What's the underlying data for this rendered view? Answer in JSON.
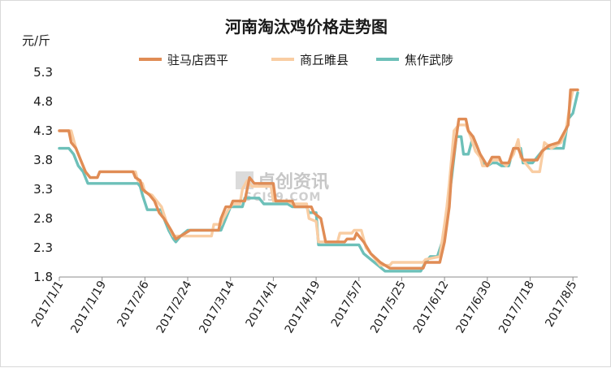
{
  "chart_data": {
    "type": "line",
    "title": "河南淘汰鸡价格走势图",
    "ylabel": "元/斤",
    "xlabel": "",
    "ylim": [
      1.8,
      5.3
    ],
    "yticks": [
      "5.3",
      "4.8",
      "4.3",
      "3.8",
      "3.3",
      "2.8",
      "2.3",
      "1.8"
    ],
    "x_range": [
      "2017/1/1",
      "2017/8/7"
    ],
    "xticks": [
      "2017/1/1",
      "2017/1/19",
      "2017/2/6",
      "2017/2/24",
      "2017/3/14",
      "2017/4/1",
      "2017/4/19",
      "2017/5/7",
      "2017/5/25",
      "2017/6/12",
      "2017/6/30",
      "2017/7/18",
      "2017/8/5"
    ],
    "legend_position": "top",
    "grid": false,
    "watermark": {
      "cn": "卓创资讯",
      "en": "SCI99.COM"
    },
    "series": [
      {
        "name": "驻马店西平",
        "color": "#E08C55",
        "points": [
          [
            "2017/1/1",
            4.3
          ],
          [
            "2017/1/5",
            4.3
          ],
          [
            "2017/1/6",
            4.1
          ],
          [
            "2017/1/8",
            4.0
          ],
          [
            "2017/1/10",
            3.8
          ],
          [
            "2017/1/12",
            3.6
          ],
          [
            "2017/1/14",
            3.5
          ],
          [
            "2017/1/17",
            3.5
          ],
          [
            "2017/1/18",
            3.6
          ],
          [
            "2017/2/1",
            3.6
          ],
          [
            "2017/2/2",
            3.5
          ],
          [
            "2017/2/4",
            3.45
          ],
          [
            "2017/2/5",
            3.3
          ],
          [
            "2017/2/8",
            3.2
          ],
          [
            "2017/2/10",
            3.1
          ],
          [
            "2017/2/12",
            2.9
          ],
          [
            "2017/2/14",
            2.8
          ],
          [
            "2017/2/17",
            2.6
          ],
          [
            "2017/2/19",
            2.45
          ],
          [
            "2017/2/21",
            2.5
          ],
          [
            "2017/2/25",
            2.6
          ],
          [
            "2017/3/9",
            2.6
          ],
          [
            "2017/3/10",
            2.8
          ],
          [
            "2017/3/12",
            3.0
          ],
          [
            "2017/3/14",
            3.0
          ],
          [
            "2017/3/15",
            3.1
          ],
          [
            "2017/3/20",
            3.1
          ],
          [
            "2017/3/22",
            3.5
          ],
          [
            "2017/3/24",
            3.4
          ],
          [
            "2017/4/1",
            3.4
          ],
          [
            "2017/4/2",
            3.1
          ],
          [
            "2017/4/9",
            3.1
          ],
          [
            "2017/4/10",
            3.0
          ],
          [
            "2017/4/17",
            3.0
          ],
          [
            "2017/4/18",
            2.9
          ],
          [
            "2017/4/21",
            2.8
          ],
          [
            "2017/4/23",
            2.4
          ],
          [
            "2017/5/1",
            2.4
          ],
          [
            "2017/5/2",
            2.45
          ],
          [
            "2017/5/5",
            2.45
          ],
          [
            "2017/5/6",
            2.55
          ],
          [
            "2017/5/9",
            2.4
          ],
          [
            "2017/5/12",
            2.2
          ],
          [
            "2017/5/16",
            2.05
          ],
          [
            "2017/5/20",
            1.95
          ],
          [
            "2017/5/24",
            1.95
          ],
          [
            "2017/5/25",
            1.95
          ],
          [
            "2017/6/3",
            1.95
          ],
          [
            "2017/6/4",
            2.05
          ],
          [
            "2017/6/10",
            2.05
          ],
          [
            "2017/6/12",
            2.4
          ],
          [
            "2017/6/14",
            3.0
          ],
          [
            "2017/6/15",
            3.6
          ],
          [
            "2017/6/17",
            4.2
          ],
          [
            "2017/6/18",
            4.5
          ],
          [
            "2017/6/21",
            4.5
          ],
          [
            "2017/6/22",
            4.3
          ],
          [
            "2017/6/24",
            4.2
          ],
          [
            "2017/6/25",
            4.1
          ],
          [
            "2017/6/27",
            3.9
          ],
          [
            "2017/6/30",
            3.7
          ],
          [
            "2017/7/2",
            3.85
          ],
          [
            "2017/7/5",
            3.85
          ],
          [
            "2017/7/6",
            3.75
          ],
          [
            "2017/7/9",
            3.75
          ],
          [
            "2017/7/11",
            4.0
          ],
          [
            "2017/7/13",
            4.0
          ],
          [
            "2017/7/15",
            3.8
          ],
          [
            "2017/7/21",
            3.8
          ],
          [
            "2017/7/23",
            3.95
          ],
          [
            "2017/7/26",
            4.05
          ],
          [
            "2017/7/30",
            4.1
          ],
          [
            "2017/8/3",
            4.4
          ],
          [
            "2017/8/4",
            5.0
          ],
          [
            "2017/8/7",
            5.0
          ]
        ]
      },
      {
        "name": "商丘睢县",
        "color": "#F9CDA3",
        "points": [
          [
            "2017/1/1",
            4.3
          ],
          [
            "2017/1/6",
            4.3
          ],
          [
            "2017/1/8",
            4.0
          ],
          [
            "2017/1/10",
            3.8
          ],
          [
            "2017/1/12",
            3.6
          ],
          [
            "2017/1/14",
            3.5
          ],
          [
            "2017/1/17",
            3.5
          ],
          [
            "2017/1/18",
            3.6
          ],
          [
            "2017/2/2",
            3.6
          ],
          [
            "2017/2/3",
            3.45
          ],
          [
            "2017/2/5",
            3.4
          ],
          [
            "2017/2/6",
            3.25
          ],
          [
            "2017/2/9",
            3.2
          ],
          [
            "2017/2/11",
            3.1
          ],
          [
            "2017/2/13",
            3.0
          ],
          [
            "2017/2/15",
            2.75
          ],
          [
            "2017/2/18",
            2.5
          ],
          [
            "2017/2/22",
            2.5
          ],
          [
            "2017/3/6",
            2.5
          ],
          [
            "2017/3/7",
            2.7
          ],
          [
            "2017/3/10",
            2.7
          ],
          [
            "2017/3/11",
            2.8
          ],
          [
            "2017/3/13",
            2.95
          ],
          [
            "2017/3/15",
            3.05
          ],
          [
            "2017/3/18",
            3.05
          ],
          [
            "2017/3/19",
            3.3
          ],
          [
            "2017/3/21",
            3.45
          ],
          [
            "2017/3/23",
            3.35
          ],
          [
            "2017/3/31",
            3.35
          ],
          [
            "2017/4/1",
            3.1
          ],
          [
            "2017/4/7",
            3.1
          ],
          [
            "2017/4/9",
            3.05
          ],
          [
            "2017/4/15",
            3.05
          ],
          [
            "2017/4/16",
            2.8
          ],
          [
            "2017/4/19",
            2.75
          ],
          [
            "2017/4/20",
            2.4
          ],
          [
            "2017/4/28",
            2.4
          ],
          [
            "2017/4/29",
            2.55
          ],
          [
            "2017/5/4",
            2.55
          ],
          [
            "2017/5/5",
            2.6
          ],
          [
            "2017/5/8",
            2.6
          ],
          [
            "2017/5/10",
            2.3
          ],
          [
            "2017/5/13",
            2.15
          ],
          [
            "2017/5/16",
            2.0
          ],
          [
            "2017/5/20",
            2.0
          ],
          [
            "2017/5/21",
            2.05
          ],
          [
            "2017/6/3",
            2.05
          ],
          [
            "2017/6/4",
            2.1
          ],
          [
            "2017/6/10",
            2.15
          ],
          [
            "2017/6/12",
            2.7
          ],
          [
            "2017/6/13",
            3.0
          ],
          [
            "2017/6/14",
            3.4
          ],
          [
            "2017/6/16",
            4.3
          ],
          [
            "2017/6/18",
            4.4
          ],
          [
            "2017/6/21",
            4.4
          ],
          [
            "2017/6/23",
            4.2
          ],
          [
            "2017/6/25",
            3.95
          ],
          [
            "2017/6/27",
            3.85
          ],
          [
            "2017/6/28",
            3.7
          ],
          [
            "2017/6/30",
            3.7
          ],
          [
            "2017/7/2",
            3.8
          ],
          [
            "2017/7/5",
            3.8
          ],
          [
            "2017/7/8",
            3.7
          ],
          [
            "2017/7/11",
            3.9
          ],
          [
            "2017/7/13",
            4.15
          ],
          [
            "2017/7/14",
            3.85
          ],
          [
            "2017/7/17",
            3.7
          ],
          [
            "2017/7/19",
            3.6
          ],
          [
            "2017/7/22",
            3.6
          ],
          [
            "2017/7/24",
            4.1
          ],
          [
            "2017/7/27",
            4.0
          ],
          [
            "2017/7/31",
            4.1
          ],
          [
            "2017/8/2",
            4.3
          ],
          [
            "2017/8/4",
            4.8
          ],
          [
            "2017/8/5",
            5.0
          ],
          [
            "2017/8/7",
            5.0
          ]
        ]
      },
      {
        "name": "焦作武陟",
        "color": "#6DC0B9",
        "points": [
          [
            "2017/1/1",
            4.0
          ],
          [
            "2017/1/5",
            4.0
          ],
          [
            "2017/1/7",
            3.9
          ],
          [
            "2017/1/9",
            3.7
          ],
          [
            "2017/1/11",
            3.6
          ],
          [
            "2017/1/13",
            3.4
          ],
          [
            "2017/2/3",
            3.4
          ],
          [
            "2017/2/4",
            3.35
          ],
          [
            "2017/2/5",
            3.2
          ],
          [
            "2017/2/7",
            2.95
          ],
          [
            "2017/2/13",
            2.95
          ],
          [
            "2017/2/14",
            2.8
          ],
          [
            "2017/2/16",
            2.6
          ],
          [
            "2017/2/18",
            2.45
          ],
          [
            "2017/2/19",
            2.4
          ],
          [
            "2017/2/21",
            2.5
          ],
          [
            "2017/2/24",
            2.6
          ],
          [
            "2017/3/8",
            2.6
          ],
          [
            "2017/3/10",
            2.6
          ],
          [
            "2017/3/12",
            2.8
          ],
          [
            "2017/3/14",
            3.0
          ],
          [
            "2017/3/19",
            3.0
          ],
          [
            "2017/3/20",
            3.15
          ],
          [
            "2017/3/26",
            3.15
          ],
          [
            "2017/3/28",
            3.05
          ],
          [
            "2017/4/7",
            3.05
          ],
          [
            "2017/4/9",
            3.0
          ],
          [
            "2017/4/15",
            3.0
          ],
          [
            "2017/4/16",
            2.9
          ],
          [
            "2017/4/19",
            2.9
          ],
          [
            "2017/4/20",
            2.35
          ],
          [
            "2017/5/7",
            2.35
          ],
          [
            "2017/5/9",
            2.2
          ],
          [
            "2017/5/12",
            2.1
          ],
          [
            "2017/5/15",
            2.0
          ],
          [
            "2017/5/18",
            1.9
          ],
          [
            "2017/5/22",
            1.9
          ],
          [
            "2017/6/2",
            1.9
          ],
          [
            "2017/6/4",
            2.05
          ],
          [
            "2017/6/6",
            2.15
          ],
          [
            "2017/6/9",
            2.15
          ],
          [
            "2017/6/11",
            2.4
          ],
          [
            "2017/6/13",
            2.9
          ],
          [
            "2017/6/15",
            3.5
          ],
          [
            "2017/6/17",
            4.2
          ],
          [
            "2017/6/19",
            4.2
          ],
          [
            "2017/6/20",
            3.9
          ],
          [
            "2017/6/22",
            3.9
          ],
          [
            "2017/6/24",
            4.2
          ],
          [
            "2017/6/26",
            4.0
          ],
          [
            "2017/6/28",
            3.75
          ],
          [
            "2017/6/30",
            3.7
          ],
          [
            "2017/7/2",
            3.75
          ],
          [
            "2017/7/4",
            3.75
          ],
          [
            "2017/7/6",
            3.7
          ],
          [
            "2017/7/9",
            3.7
          ],
          [
            "2017/7/11",
            4.0
          ],
          [
            "2017/7/14",
            4.0
          ],
          [
            "2017/7/15",
            3.75
          ],
          [
            "2017/7/19",
            3.75
          ],
          [
            "2017/7/21",
            3.85
          ],
          [
            "2017/7/24",
            4.0
          ],
          [
            "2017/8/1",
            4.0
          ],
          [
            "2017/8/3",
            4.5
          ],
          [
            "2017/8/5",
            4.6
          ],
          [
            "2017/8/7",
            4.95
          ]
        ]
      }
    ]
  }
}
